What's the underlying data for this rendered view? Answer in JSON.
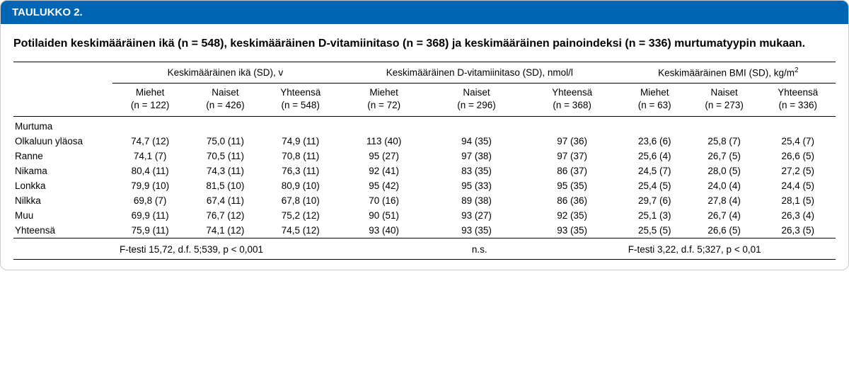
{
  "header": {
    "title": "TAULUKKO 2."
  },
  "caption": "Potilaiden keskimääräinen ikä (n = 548), keskimääräinen D-vitamiinitaso (n = 368) ja keskimääräinen painoindeksi (n = 336) murtumatyypin mukaan.",
  "groups": {
    "age": {
      "title": "Keskimääräinen ikä (SD), v",
      "cols": {
        "m": "Miehet\n(n = 122)",
        "f": "Naiset\n(n = 426)",
        "t": "Yhteensä\n(n = 548)"
      },
      "ftest": "F-testi 15,72, d.f. 5;539, p < 0,001"
    },
    "vitd": {
      "title": "Keskimääräinen D-vitamiinitaso (SD), nmol/l",
      "cols": {
        "m": "Miehet\n(n = 72)",
        "f": "Naiset\n(n = 296)",
        "t": "Yhteensä\n(n = 368)"
      },
      "ftest": "n.s."
    },
    "bmi": {
      "title_prefix": "Keskimääräinen BMI (SD), kg/m",
      "title_sup": "2",
      "cols": {
        "m": "Miehet\n(n = 63)",
        "f": "Naiset\n(n = 273)",
        "t": "Yhteensä\n(n = 336)"
      },
      "ftest": "F-testi 3,22, d.f. 5;327, p < 0,01"
    }
  },
  "section_label": "Murtuma",
  "rows": [
    {
      "label": "Olkaluun yläosa",
      "age": [
        "74,7 (12)",
        "75,0 (11)",
        "74,9 (11)"
      ],
      "vitd": [
        "113 (40)",
        "94 (35)",
        "97 (36)"
      ],
      "bmi": [
        "23,6 (6)",
        "25,8 (7)",
        "25,4 (7)"
      ]
    },
    {
      "label": "Ranne",
      "age": [
        "74,1 (7)",
        "70,5 (11)",
        "70,8 (11)"
      ],
      "vitd": [
        "95 (27)",
        "97 (38)",
        "97 (37)"
      ],
      "bmi": [
        "25,6 (4)",
        "26,7 (5)",
        "26,6 (5)"
      ]
    },
    {
      "label": "Nikama",
      "age": [
        "80,4 (11)",
        "74,3 (11)",
        "76,3 (11)"
      ],
      "vitd": [
        "92 (41)",
        "83 (35)",
        "86 (37)"
      ],
      "bmi": [
        "24,5 (7)",
        "28,0 (5)",
        "27,2 (5)"
      ]
    },
    {
      "label": "Lonkka",
      "age": [
        "79,9 (10)",
        "81,5 (10)",
        "80,9 (10)"
      ],
      "vitd": [
        "95 (42)",
        "95 (33)",
        "95 (35)"
      ],
      "bmi": [
        "25,4 (5)",
        "24,0 (4)",
        "24,4 (5)"
      ]
    },
    {
      "label": "Nilkka",
      "age": [
        "69,8 (7)",
        "67,4 (11)",
        "67,8 (10)"
      ],
      "vitd": [
        "70 (16)",
        "89 (38)",
        "86 (36)"
      ],
      "bmi": [
        "29,7 (6)",
        "27,8 (4)",
        "28,1 (5)"
      ]
    },
    {
      "label": "Muu",
      "age": [
        "69,9 (11)",
        "76,7 (12)",
        "75,2 (12)"
      ],
      "vitd": [
        "90 (51)",
        "93 (27)",
        "92 (35)"
      ],
      "bmi": [
        "25,1 (3)",
        "26,7 (4)",
        "26,3 (4)"
      ]
    },
    {
      "label": "Yhteensä",
      "age": [
        "75,9 (11)",
        "74,1 (12)",
        "74,5 (12)"
      ],
      "vitd": [
        "93 (40)",
        "93 (35)",
        "93 (35)"
      ],
      "bmi": [
        "25,5 (5)",
        "26,6 (5)",
        "26,3 (5)"
      ]
    }
  ],
  "colors": {
    "header_bg": "#0066b3",
    "header_fg": "#ffffff",
    "rule": "#000000"
  }
}
